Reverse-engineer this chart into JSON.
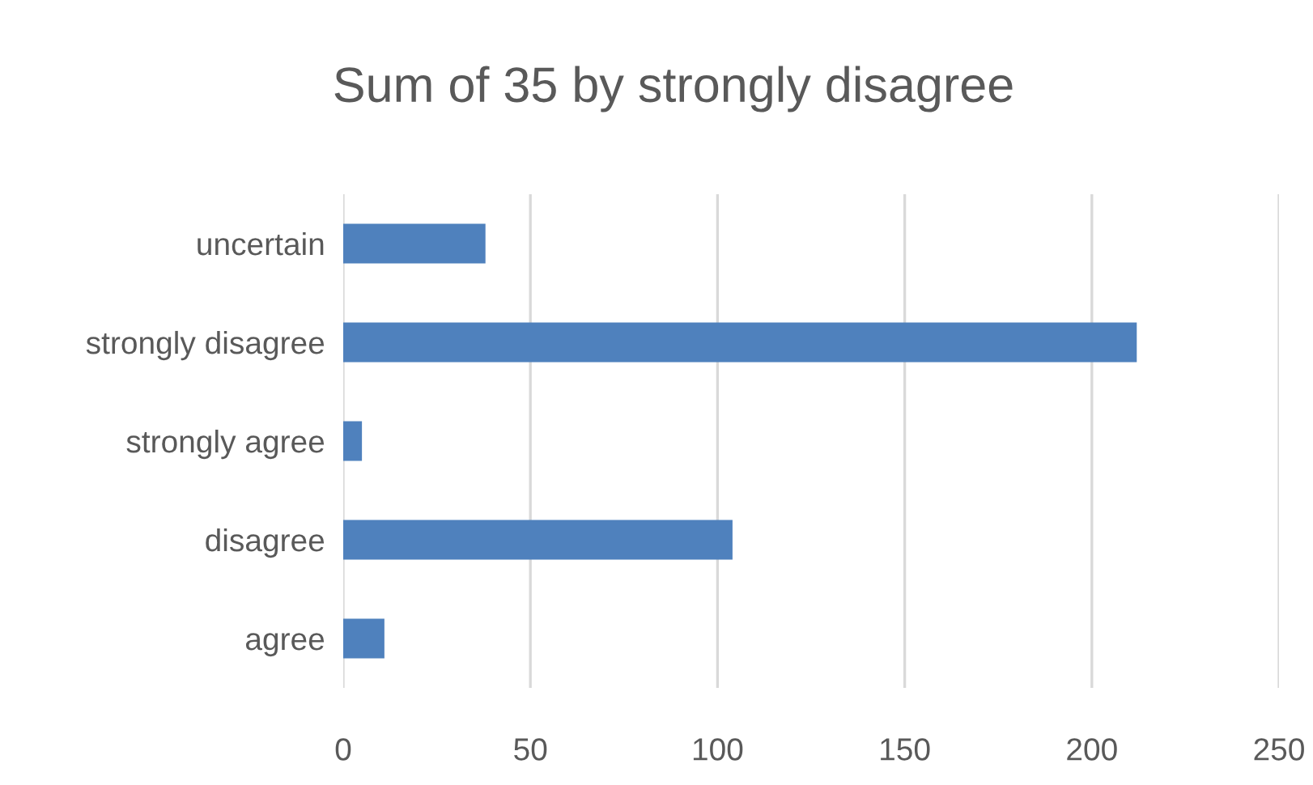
{
  "chart_data": {
    "type": "bar",
    "orientation": "horizontal",
    "title": "Sum of 35 by strongly disagree",
    "categories": [
      "uncertain",
      "strongly disagree",
      "strongly agree",
      "disagree",
      "agree"
    ],
    "values": [
      38,
      212,
      5,
      104,
      11
    ],
    "color": "#4f81bd",
    "xlim": [
      0,
      250
    ],
    "xticks": [
      0,
      50,
      100,
      150,
      200,
      250
    ],
    "grid": "x",
    "legend": false
  }
}
